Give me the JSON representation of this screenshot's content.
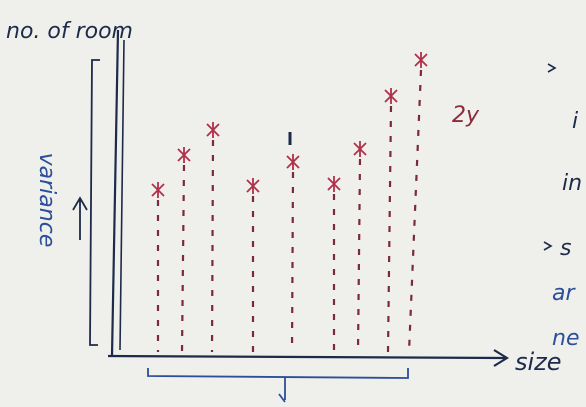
{
  "y_axis_title": "no. of room",
  "side_label": "variance",
  "x_axis_title": "size",
  "annotation": "2y",
  "margin_notes": [
    "i",
    "in",
    "s",
    "ar",
    "ne"
  ]
}
